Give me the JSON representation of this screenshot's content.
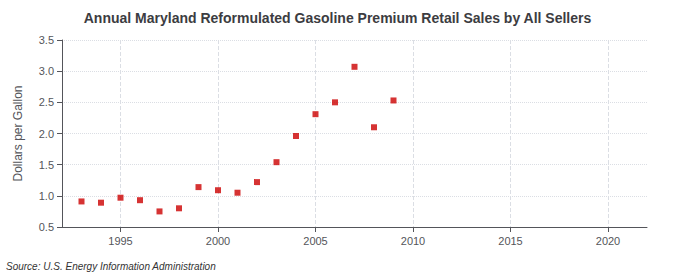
{
  "chart_data": {
    "type": "scatter",
    "title": "Annual Maryland Reformulated Gasoline Premium Retail Sales by All Sellers",
    "ylabel": "Dollars per Gallon",
    "annotation": "Source: U.S. Energy Information Administration",
    "x": [
      1993,
      1994,
      1995,
      1996,
      1997,
      1998,
      1999,
      2000,
      2001,
      2002,
      2003,
      2004,
      2005,
      2006,
      2007,
      2008,
      2009
    ],
    "values": [
      0.91,
      0.89,
      0.97,
      0.93,
      0.75,
      0.8,
      1.14,
      1.09,
      1.05,
      1.22,
      1.54,
      1.96,
      2.31,
      2.5,
      3.07,
      2.1,
      2.53
    ],
    "color": "#cc0000",
    "marker": "square",
    "xlim": [
      1992,
      2022
    ],
    "xticks": [
      1995,
      2000,
      2005,
      2010,
      2015,
      2020
    ],
    "ylim": [
      0.5,
      3.5
    ],
    "yticks": [
      0.5,
      {
        "value": 1,
        "label": "1.0"
      },
      1.5,
      {
        "value": 2,
        "label": "2.0"
      },
      2.5,
      {
        "value": 3,
        "label": "3.0"
      },
      3.5
    ],
    "grid": true
  }
}
